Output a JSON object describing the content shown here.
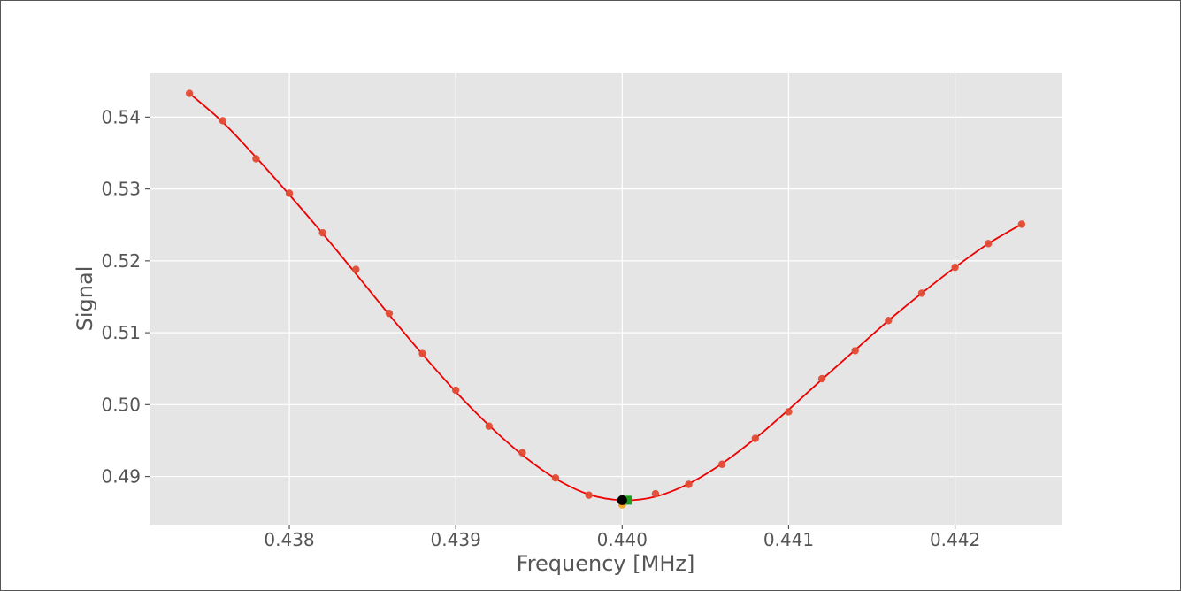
{
  "chart_data": {
    "type": "scatter",
    "title": "",
    "xlabel": "Frequency [MHz]",
    "ylabel": "Signal",
    "xlim": [
      0.43716,
      0.44264
    ],
    "ylim": [
      0.4833,
      0.5462
    ],
    "grid": true,
    "legend": "none",
    "x_ticks": [
      0.438,
      0.439,
      0.44,
      0.441,
      0.442
    ],
    "x_tick_labels": [
      "0.438",
      "0.439",
      "0.440",
      "0.441",
      "0.442"
    ],
    "y_ticks": [
      0.49,
      0.5,
      0.51,
      0.52,
      0.53,
      0.54
    ],
    "y_tick_labels": [
      "0.49",
      "0.50",
      "0.51",
      "0.52",
      "0.53",
      "0.54"
    ],
    "colors": {
      "plot_background": "#e5e5e5",
      "grid": "#ffffff",
      "data_points": "#e24a33",
      "fit_line": "#ee0000",
      "center_marker": "#000000",
      "square_marker": "#1a9e1a",
      "orange_marker": "#f5a623"
    },
    "series": [
      {
        "kind": "points",
        "x": [
          0.4374,
          0.4376,
          0.4378,
          0.438,
          0.4382,
          0.4384,
          0.4386,
          0.4388,
          0.439,
          0.4392,
          0.4394,
          0.4396,
          0.4398,
          0.44,
          0.4402,
          0.4404,
          0.4406,
          0.4408,
          0.441,
          0.4412,
          0.4414,
          0.4416,
          0.4418,
          0.442,
          0.4422,
          0.4424
        ],
        "y": [
          0.5433,
          0.5395,
          0.5342,
          0.5294,
          0.5239,
          0.5188,
          0.5127,
          0.5071,
          0.502,
          0.497,
          0.4933,
          0.4898,
          0.4874,
          0.4862,
          0.4876,
          0.4889,
          0.4917,
          0.4953,
          0.499,
          0.5036,
          0.5075,
          0.5117,
          0.5155,
          0.5191,
          0.5224,
          0.5251
        ]
      },
      {
        "kind": "fit",
        "x": [
          0.4374,
          0.4376,
          0.4378,
          0.438,
          0.4382,
          0.4384,
          0.4386,
          0.4388,
          0.439,
          0.4392,
          0.4394,
          0.4396,
          0.4398,
          0.44,
          0.4402,
          0.4404,
          0.4406,
          0.4408,
          0.441,
          0.4412,
          0.4414,
          0.4416,
          0.4418,
          0.442,
          0.4422,
          0.4424
        ],
        "y": [
          0.5433,
          0.5393,
          0.5344,
          0.5292,
          0.5238,
          0.5182,
          0.5125,
          0.507,
          0.5018,
          0.4971,
          0.493,
          0.4897,
          0.4875,
          0.4867,
          0.4872,
          0.489,
          0.4918,
          0.4953,
          0.4993,
          0.5035,
          0.5076,
          0.5117,
          0.5155,
          0.5191,
          0.5224,
          0.5251
        ]
      }
    ],
    "markers": [
      {
        "kind": "orange",
        "x": 0.44,
        "y": 0.4861
      },
      {
        "kind": "square",
        "x": 0.44003,
        "y": 0.4867
      },
      {
        "kind": "center",
        "x": 0.44,
        "y": 0.4867
      }
    ]
  }
}
